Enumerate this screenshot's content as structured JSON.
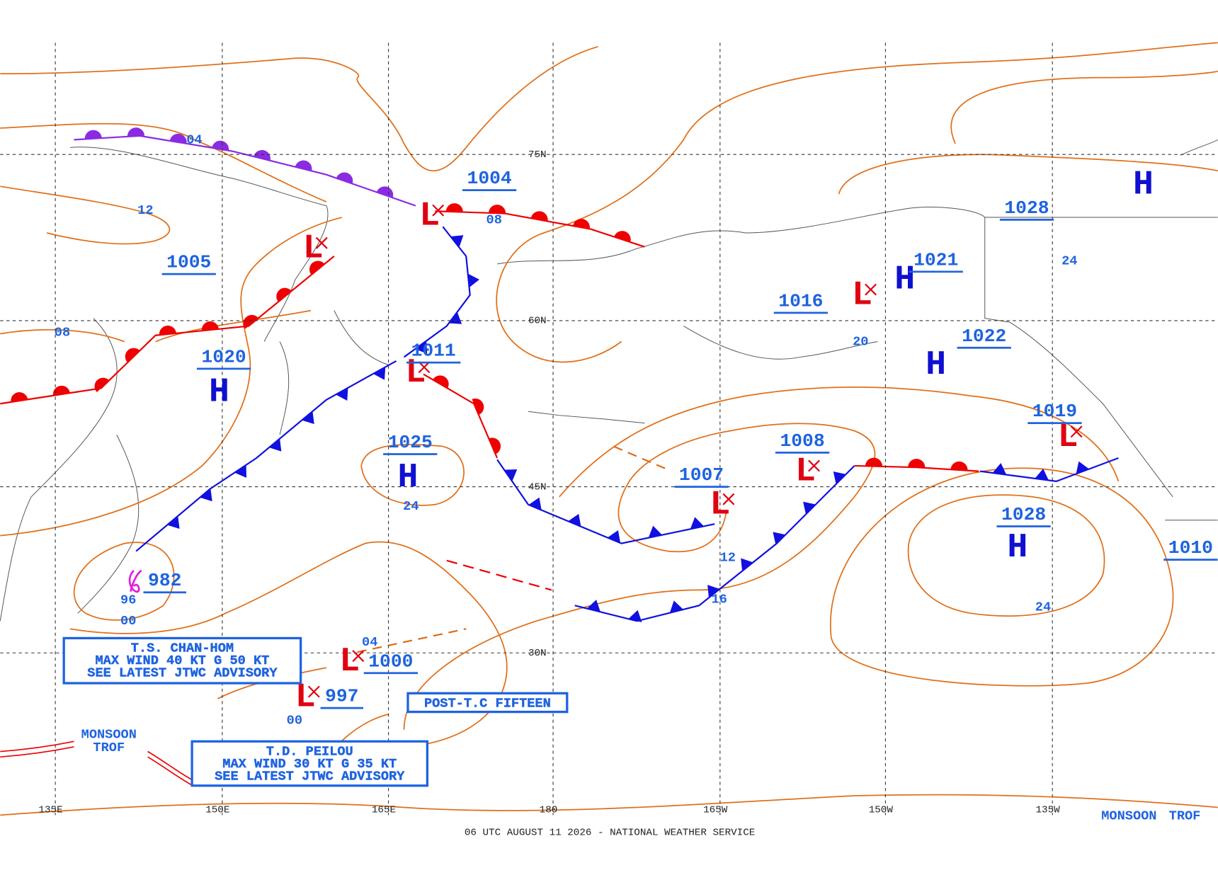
{
  "map": {
    "footer": "06 UTC AUGUST 11 2026 - NATIONAL WEATHER SERVICE",
    "longitude_labels": [
      "135E",
      "150E",
      "165E",
      "180",
      "165W",
      "150W",
      "135W"
    ],
    "latitude_labels": [
      "75N",
      "60N",
      "45N",
      "30N"
    ],
    "centers": [
      {
        "symbol": "L",
        "pressure": "1004"
      },
      {
        "symbol": "L",
        "pressure": "1005"
      },
      {
        "symbol": "H",
        "pressure": "1020"
      },
      {
        "symbol": "L",
        "pressure": "1011"
      },
      {
        "symbol": "H",
        "pressure": "1025"
      },
      {
        "symbol": "L",
        "pressure": "1007"
      },
      {
        "symbol": "L",
        "pressure": "1008"
      },
      {
        "symbol": "L",
        "pressure": "1016"
      },
      {
        "symbol": "H",
        "pressure": "1021"
      },
      {
        "symbol": "H",
        "pressure": "1022"
      },
      {
        "symbol": "H",
        "pressure": "1028"
      },
      {
        "symbol": "L",
        "pressure": "1019"
      },
      {
        "symbol": "H"
      },
      {
        "pressure": "1028"
      },
      {
        "symbol": "L",
        "pressure": "1000"
      },
      {
        "symbol": "L",
        "pressure": "997"
      },
      {
        "pressure": "982"
      },
      {
        "pressure": "1010"
      }
    ],
    "isobar_labels": [
      "04",
      "12",
      "08",
      "08",
      "24",
      "20",
      "24",
      "12",
      "16",
      "24",
      "96",
      "00",
      "04",
      "00"
    ],
    "advisories": [
      {
        "lines": [
          "T.S. CHAN-HOM",
          "MAX WIND 40 KT G 50 KT",
          "SEE LATEST JTWC ADVISORY"
        ]
      },
      {
        "lines": [
          "T.D. PEILOU",
          "MAX WIND 30 KT G 35 KT",
          "SEE LATEST JTWC ADVISORY"
        ]
      },
      {
        "lines": [
          "POST-T.C FIFTEEN"
        ]
      }
    ],
    "troughs": [
      [
        "MONSOON",
        "TROF"
      ],
      [
        "MONSOON",
        "TROF"
      ]
    ]
  }
}
